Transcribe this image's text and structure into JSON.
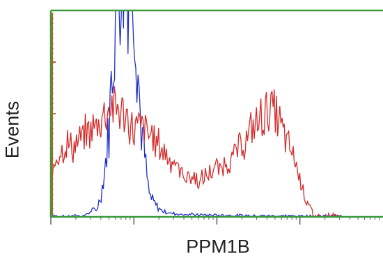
{
  "chart_data": {
    "type": "line",
    "xlabel": "PPM1B",
    "ylabel": "Events",
    "x_scale": "log",
    "grid": false,
    "legend": "none",
    "colors": {
      "axes": "#3a9a3a",
      "ticks_left": "#b5602a"
    },
    "series": [
      {
        "color": "#1f2fc8",
        "x": [
          0.0,
          0.12,
          0.18,
          0.24,
          0.28,
          0.3,
          0.32,
          0.36,
          0.38,
          0.4,
          0.45,
          0.5,
          0.55,
          0.6,
          0.65,
          0.7,
          0.74,
          0.78,
          0.82,
          0.85,
          0.88,
          0.9,
          0.92,
          0.95,
          0.98,
          1.0,
          1.02,
          1.05,
          1.08,
          1.12,
          1.18,
          1.25,
          1.3,
          1.4,
          1.55,
          1.75,
          2.0,
          2.2,
          2.4,
          2.6,
          2.8,
          3.0,
          3.2,
          3.4,
          3.5
        ],
        "y": [
          6,
          3,
          2,
          3,
          7,
          8,
          5,
          4,
          4,
          6,
          18,
          30,
          36,
          95,
          230,
          430,
          730,
          1050,
          1200,
          1200,
          1200,
          1200,
          1200,
          1200,
          1200,
          1200,
          950,
          720,
          470,
          330,
          110,
          65,
          40,
          20,
          14,
          10,
          8,
          7,
          6,
          5,
          5,
          4,
          4,
          5,
          4
        ]
      },
      {
        "color": "#d42a2a",
        "x": [
          0.0,
          0.06,
          0.12,
          0.2,
          0.28,
          0.36,
          0.44,
          0.52,
          0.6,
          0.68,
          0.76,
          0.84,
          0.92,
          1.0,
          1.08,
          1.16,
          1.24,
          1.32,
          1.4,
          1.48,
          1.56,
          1.64,
          1.72,
          1.8,
          1.88,
          1.96,
          2.04,
          2.12,
          2.2,
          2.28,
          2.36,
          2.44,
          2.52,
          2.6,
          2.68,
          2.76,
          2.84,
          2.92,
          3.0,
          3.08,
          3.16,
          3.24,
          3.32,
          3.4,
          3.48
        ],
        "y": [
          140,
          300,
          330,
          350,
          340,
          370,
          410,
          430,
          470,
          530,
          540,
          510,
          470,
          420,
          440,
          410,
          380,
          340,
          300,
          270,
          210,
          200,
          190,
          170,
          200,
          230,
          230,
          270,
          290,
          340,
          370,
          440,
          470,
          520,
          520,
          450,
          360,
          300,
          190,
          80,
          10,
          0,
          0,
          0,
          0
        ]
      }
    ]
  }
}
